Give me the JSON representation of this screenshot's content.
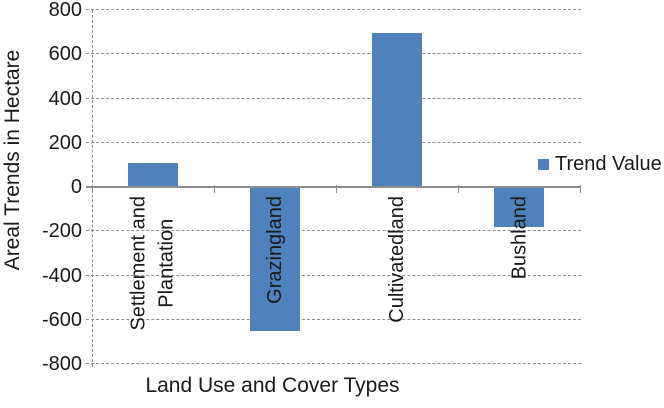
{
  "chart_data": {
    "type": "bar",
    "title": "",
    "xlabel": "Land Use and Cover Types",
    "ylabel": "Areal Trends in Hectare",
    "categories": [
      "Settlement and Plantation",
      "Grazingland",
      "Cultivatedland",
      "Bushland"
    ],
    "categories_display_lines": [
      [
        "Settlement and",
        "Plantation"
      ],
      [
        "Grazingland"
      ],
      [
        "Cultivatedland"
      ],
      [
        "Bushland"
      ]
    ],
    "series": [
      {
        "name": "Trend Value",
        "color": "#4F81BD",
        "values": [
          110,
          -650,
          695,
          -180
        ]
      }
    ],
    "ylim": [
      -800,
      800
    ],
    "yticks": [
      800,
      600,
      400,
      200,
      0,
      -200,
      -400,
      -600,
      -800
    ],
    "grid": {
      "horizontal": true,
      "style": "dashed"
    },
    "legend": {
      "position": "right",
      "label": "Trend Value",
      "swatch_color": "#4F81BD"
    }
  },
  "colors": {
    "bar": "#4F81BD",
    "axis_line": "#8C8C8C",
    "gridline": "#8C8C8C",
    "text": "#1A1A1A",
    "background": "#FFFFFF"
  }
}
